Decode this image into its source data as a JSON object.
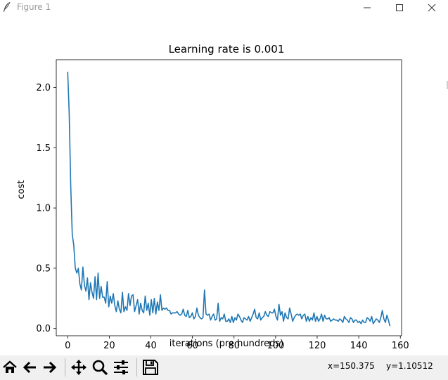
{
  "window": {
    "title": "Figure 1",
    "icon": "feather-icon",
    "buttons": [
      "minimize-icon",
      "maximize-icon",
      "close-icon"
    ]
  },
  "toolbar": {
    "buttons": [
      "home-icon",
      "back-arrow-icon",
      "forward-arrow-icon",
      "pan-icon",
      "zoom-icon",
      "configure-subplots-icon",
      "save-icon"
    ],
    "coords": {
      "x": "x=150.375",
      "y": "y=1.10512"
    }
  },
  "colors": {
    "line": "#1f77b4",
    "toolbar_bg": "#f0f0f0"
  },
  "chart_data": {
    "type": "line",
    "title": "Learning rate is 0.001",
    "xlabel": "iterations (pre hundreds)",
    "ylabel": "cost",
    "xlim": [
      -5.5,
      160.6
    ],
    "ylim": [
      -0.06,
      2.23
    ],
    "xticks": [
      0,
      20,
      40,
      60,
      80,
      100,
      120,
      140,
      160
    ],
    "xtick_labels": [
      "0",
      "20",
      "40",
      "60",
      "80",
      "100",
      "120",
      "140",
      "160"
    ],
    "yticks": [
      0.0,
      0.5,
      1.0,
      1.5,
      2.0
    ],
    "ytick_labels": [
      "0.0",
      "0.5",
      "1.0",
      "1.5",
      "2.0"
    ],
    "grid": false,
    "series": [
      {
        "values": [
          2.13,
          1.78,
          1.18,
          0.78,
          0.69,
          0.5,
          0.46,
          0.5,
          0.37,
          0.32,
          0.51,
          0.36,
          0.31,
          0.42,
          0.24,
          0.38,
          0.3,
          0.25,
          0.43,
          0.24,
          0.46,
          0.25,
          0.35,
          0.26,
          0.26,
          0.21,
          0.39,
          0.18,
          0.27,
          0.21,
          0.29,
          0.19,
          0.14,
          0.23,
          0.16,
          0.13,
          0.3,
          0.14,
          0.18,
          0.15,
          0.29,
          0.19,
          0.27,
          0.28,
          0.14,
          0.19,
          0.24,
          0.12,
          0.21,
          0.15,
          0.13,
          0.27,
          0.15,
          0.21,
          0.11,
          0.24,
          0.13,
          0.25,
          0.12,
          0.22,
          0.15,
          0.28,
          0.15,
          0.17,
          0.16,
          0.17,
          0.15,
          0.15,
          0.12,
          0.13,
          0.13,
          0.13,
          0.14,
          0.12,
          0.11,
          0.12,
          0.16,
          0.11,
          0.1,
          0.15,
          0.09,
          0.1,
          0.13,
          0.08,
          0.1,
          0.17,
          0.11,
          0.09,
          0.08,
          0.09,
          0.32,
          0.12,
          0.11,
          0.12,
          0.07,
          0.1,
          0.12,
          0.07,
          0.08,
          0.21,
          0.06,
          0.09,
          0.08,
          0.12,
          0.06,
          0.06,
          0.08,
          0.05,
          0.1,
          0.05,
          0.09,
          0.07,
          0.12,
          0.1,
          0.07,
          0.05,
          0.09,
          0.08,
          0.07,
          0.1,
          0.06,
          0.09,
          0.12,
          0.16,
          0.09,
          0.08,
          0.13,
          0.07,
          0.09,
          0.1,
          0.14,
          0.11,
          0.1,
          0.14,
          0.13,
          0.13,
          0.16,
          0.1,
          0.07,
          0.2,
          0.11,
          0.14,
          0.06,
          0.13,
          0.09,
          0.08,
          0.17,
          0.12,
          0.06,
          0.09,
          0.11,
          0.12,
          0.11,
          0.12,
          0.08,
          0.11,
          0.12,
          0.06,
          0.1,
          0.06,
          0.09,
          0.07,
          0.13,
          0.06,
          0.1,
          0.06,
          0.08,
          0.12,
          0.06,
          0.11,
          0.08,
          0.08,
          0.09,
          0.06,
          0.07,
          0.08,
          0.07,
          0.07,
          0.06,
          0.08,
          0.07,
          0.05,
          0.1,
          0.08,
          0.07,
          0.05,
          0.09,
          0.08,
          0.05,
          0.07,
          0.07,
          0.05,
          0.06,
          0.04,
          0.07,
          0.05,
          0.05,
          0.09,
          0.08,
          0.06,
          0.1,
          0.04,
          0.06,
          0.08,
          0.07,
          0.05,
          0.09,
          0.15,
          0.08,
          0.05,
          0.11,
          0.07,
          0.02
        ]
      }
    ]
  }
}
